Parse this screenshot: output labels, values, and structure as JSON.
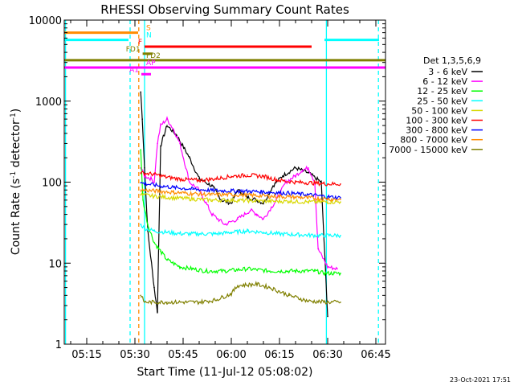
{
  "chart_data": {
    "type": "line",
    "title": "RHESSI Observing Summary Count Rates",
    "xlabel": "Start Time (11-Jul-12 05:08:02)",
    "ylabel": "Count Rate (s⁻¹ detector⁻¹)",
    "ylabel_main": "Count Rate (s",
    "ylabel_sup1": "-1",
    "ylabel_mid": " detector",
    "ylabel_sup2": "-1",
    "ylabel_end": ")",
    "yscale": "log",
    "ylim": [
      1,
      10000
    ],
    "xlim": [
      "05:08",
      "06:48"
    ],
    "xlim_minutes": [
      308,
      408
    ],
    "x_ticks": [
      {
        "label": "05:15",
        "min": 315
      },
      {
        "label": "05:30",
        "min": 330
      },
      {
        "label": "05:45",
        "min": 345
      },
      {
        "label": "06:00",
        "min": 360
      },
      {
        "label": "06:15",
        "min": 375
      },
      {
        "label": "06:30",
        "min": 390
      },
      {
        "label": "06:45",
        "min": 405
      }
    ],
    "y_ticks": [
      {
        "label": "1",
        "v": 1
      },
      {
        "label": "10",
        "v": 10
      },
      {
        "label": "100",
        "v": 100
      },
      {
        "label": "1000",
        "v": 1000
      },
      {
        "label": "10000",
        "v": 10000
      }
    ],
    "legend": {
      "title": "Det 1,3,5,6,9",
      "placement": "right",
      "entries": [
        {
          "label": "3 - 6 keV",
          "color": "#000000"
        },
        {
          "label": "6 - 12 keV",
          "color": "#ff00ff"
        },
        {
          "label": "12 - 25 keV",
          "color": "#00ff00"
        },
        {
          "label": "25 - 50 keV",
          "color": "#00ffff"
        },
        {
          "label": "50 - 100 keV",
          "color": "#d8d800"
        },
        {
          "label": "100 - 300 keV",
          "color": "#ff0000"
        },
        {
          "label": "300 - 800 keV",
          "color": "#0000ff"
        },
        {
          "label": "800 - 7000 keV",
          "color": "#ff8c00"
        },
        {
          "label": "7000 - 15000 keV",
          "color": "#808000"
        }
      ]
    },
    "series": [
      {
        "name": "3 - 6 keV",
        "color": "#000000",
        "x": [
          331.8,
          332.3,
          333,
          334,
          336,
          337,
          338,
          340,
          343,
          347,
          350,
          354,
          357,
          360,
          362,
          365,
          368,
          370,
          373,
          376,
          380,
          384,
          388,
          390
        ],
        "y": [
          1300,
          600,
          150,
          25,
          5,
          2.5,
          280,
          500,
          380,
          200,
          110,
          90,
          60,
          55,
          80,
          65,
          60,
          55,
          90,
          120,
          150,
          130,
          100,
          2.2
        ]
      },
      {
        "name": "6 - 12 keV",
        "color": "#ff00ff",
        "x": [
          331.8,
          333,
          335,
          336,
          337,
          338,
          340,
          342,
          344,
          347,
          350,
          354,
          358,
          362,
          366,
          368,
          370,
          374,
          377,
          380,
          382,
          384,
          386,
          387,
          390,
          393
        ],
        "y": [
          150,
          120,
          110,
          100,
          300,
          500,
          600,
          450,
          300,
          100,
          80,
          40,
          30,
          35,
          45,
          40,
          35,
          60,
          100,
          120,
          140,
          150,
          100,
          15,
          9,
          8.5
        ]
      },
      {
        "name": "12 - 25 keV",
        "color": "#00ff00",
        "x": [
          331.8,
          332.5,
          334,
          336,
          338,
          340,
          344,
          348,
          352,
          358,
          365,
          372,
          380,
          386,
          389,
          392,
          394
        ],
        "y": [
          250,
          60,
          30,
          18,
          14,
          11,
          9,
          8.5,
          8,
          8,
          8.5,
          8,
          8,
          8,
          7.5,
          7.5,
          7.5
        ]
      },
      {
        "name": "25 - 50 keV",
        "color": "#00ffff",
        "x": [
          331.8,
          333,
          336,
          340,
          345,
          350,
          355,
          360,
          365,
          370,
          375,
          380,
          386,
          394
        ],
        "y": [
          30,
          27,
          25,
          24,
          23,
          23,
          23,
          24,
          25,
          24,
          23,
          22.5,
          22,
          22
        ]
      },
      {
        "name": "50 - 100 keV",
        "color": "#d8d800",
        "x": [
          331.8,
          336,
          342,
          348,
          354,
          360,
          366,
          372,
          378,
          384,
          390,
          394
        ],
        "y": [
          70,
          67,
          64,
          62,
          60,
          60,
          59,
          58,
          58,
          57,
          57,
          57
        ]
      },
      {
        "name": "100 - 300 keV",
        "color": "#ff0000",
        "x": [
          331.8,
          336,
          340,
          345,
          350,
          355,
          360,
          365,
          370,
          375,
          380,
          385,
          390,
          394
        ],
        "y": [
          130,
          125,
          115,
          108,
          105,
          110,
          118,
          122,
          118,
          105,
          100,
          98,
          95,
          95
        ]
      },
      {
        "name": "300 - 800 keV",
        "color": "#0000ff",
        "x": [
          331.8,
          336,
          342,
          348,
          354,
          360,
          366,
          372,
          378,
          384,
          390,
          394
        ],
        "y": [
          98,
          92,
          86,
          82,
          79,
          78,
          77,
          75,
          73,
          70,
          66,
          64
        ]
      },
      {
        "name": "800 - 7000 keV",
        "color": "#ff8c00",
        "x": [
          331.8,
          336,
          342,
          348,
          354,
          360,
          366,
          372,
          378,
          384,
          390,
          394
        ],
        "y": [
          80,
          78,
          75,
          72,
          70,
          70,
          69,
          67,
          66,
          64,
          62,
          61
        ]
      },
      {
        "name": "7000 - 15000 keV",
        "color": "#808000",
        "x": [
          331.8,
          333,
          336,
          340,
          345,
          350,
          355,
          360,
          362,
          368,
          372,
          378,
          384,
          390,
          394
        ],
        "y": [
          4,
          3.3,
          3.3,
          3.3,
          3.3,
          3.3,
          3.5,
          4.2,
          5.3,
          5.5,
          5,
          4,
          3.4,
          3.3,
          3.3
        ]
      }
    ],
    "state_bars": [
      {
        "label": "S",
        "color": "#ff8c00",
        "x_start": 308,
        "x_end": 331,
        "level": 7000
      },
      {
        "label": "N",
        "color": "#00ffff",
        "x_start": 308,
        "x_end": 328,
        "level": 5700
      },
      {
        "label": "N",
        "color": "#00ffff",
        "x_start": 389,
        "x_end": 406,
        "level": 5700,
        "show_label": false
      },
      {
        "label": "F",
        "color": "#ff0000",
        "x_start": 333,
        "x_end": 385,
        "level": 4700
      },
      {
        "label": "FD1",
        "color": "#808000",
        "x_start": 332.4,
        "x_end": 335.5,
        "level": 3850
      },
      {
        "label": "FD2",
        "color": "#808000",
        "x_start": 308,
        "x_end": 408,
        "level": 3200
      },
      {
        "label": "AP",
        "color": "#ff00ff",
        "x_start": 308,
        "x_end": 408,
        "level": 2600
      },
      {
        "label": "A1",
        "color": "#ff00ff",
        "x_start": 332,
        "x_end": 335,
        "level": 2150
      }
    ],
    "vertical_lines": [
      {
        "name": "night-start-line",
        "color": "#00ffff",
        "x": 308.4,
        "style": "solid"
      },
      {
        "name": "saa-boundary-line",
        "color": "#00ffff",
        "x": 328.5,
        "style": "dashed"
      },
      {
        "name": "saa-exit-line",
        "color": "#ff8c00",
        "x": 331.2,
        "style": "dashed"
      },
      {
        "name": "night-exit-line",
        "color": "#00ffff",
        "x": 333,
        "style": "solid"
      },
      {
        "name": "night-start-line-2",
        "color": "#00ffff",
        "x": 389.6,
        "style": "solid"
      },
      {
        "name": "night-boundary-line-2",
        "color": "#00ffff",
        "x": 405.8,
        "style": "dashed"
      }
    ]
  },
  "footer": {
    "timestamp": "23-Oct-2021 17:51"
  }
}
